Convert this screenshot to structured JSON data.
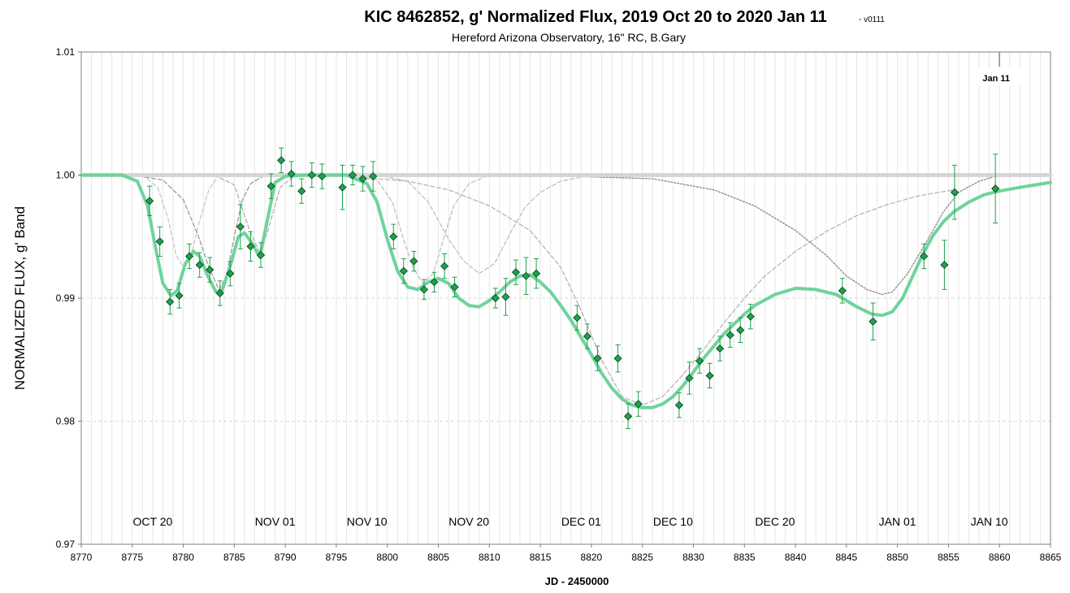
{
  "chart_data": {
    "type": "scatter",
    "title": "KIC 8462852, g' Normalized Flux, 2019 Oct 20 to 2020 Jan 11",
    "version": "- v0111",
    "subtitle": "Hereford Arizona Observatory, 16\" RC, B.Gary",
    "xlabel": "JD - 2450000",
    "ylabel": "NORMALIZED FLUX, g' Band",
    "xlim": [
      8770,
      8865
    ],
    "ylim": [
      0.97,
      1.01
    ],
    "x_ticks": [
      8770,
      8775,
      8780,
      8785,
      8790,
      8795,
      8800,
      8805,
      8810,
      8815,
      8820,
      8825,
      8830,
      8835,
      8840,
      8845,
      8850,
      8855,
      8860,
      8865
    ],
    "x_tick_labels": [
      "8770",
      "8775",
      "8780",
      "8785",
      "8790",
      "8795",
      "8800",
      "8805",
      "8810",
      "8815",
      "8820",
      "8825",
      "8830",
      "8835",
      "8840",
      "8845",
      "8850",
      "8855",
      "8860",
      "8865"
    ],
    "y_ticks": [
      0.97,
      0.98,
      0.99,
      1.0,
      1.01
    ],
    "y_tick_labels": [
      "0.97",
      "0.98",
      "0.99",
      "1.00",
      "1.01"
    ],
    "grid": "vertical lines every 1 day; dashed horizontal lines at 0.98 and 0.99",
    "month_labels": [
      {
        "text": "OCT 20",
        "x": 8777
      },
      {
        "text": "NOV 01",
        "x": 8789
      },
      {
        "text": "NOV 10",
        "x": 8798
      },
      {
        "text": "NOV 20",
        "x": 8808
      },
      {
        "text": "DEC 01",
        "x": 8819
      },
      {
        "text": "DEC 10",
        "x": 8828
      },
      {
        "text": "DEC 20",
        "x": 8838
      },
      {
        "text": "JAN 01",
        "x": 8850
      },
      {
        "text": "JAN 10",
        "x": 8859
      }
    ],
    "marker": {
      "label": "Jan 11",
      "x": 8860
    },
    "series": [
      {
        "type": "scatter",
        "color": "#1aa34a",
        "points": [
          {
            "x": 8776.7,
            "y": 0.9979,
            "err": 0.0012
          },
          {
            "x": 8777.7,
            "y": 0.9946,
            "err": 0.0012
          },
          {
            "x": 8778.7,
            "y": 0.9897,
            "err": 0.001
          },
          {
            "x": 8779.6,
            "y": 0.9902,
            "err": 0.001
          },
          {
            "x": 8780.6,
            "y": 0.9934,
            "err": 0.001
          },
          {
            "x": 8781.6,
            "y": 0.9927,
            "err": 0.001
          },
          {
            "x": 8782.6,
            "y": 0.9923,
            "err": 0.001
          },
          {
            "x": 8783.6,
            "y": 0.9904,
            "err": 0.001
          },
          {
            "x": 8784.6,
            "y": 0.992,
            "err": 0.001
          },
          {
            "x": 8785.6,
            "y": 0.9958,
            "err": 0.0018
          },
          {
            "x": 8786.6,
            "y": 0.9942,
            "err": 0.0012
          },
          {
            "x": 8787.6,
            "y": 0.9935,
            "err": 0.001
          },
          {
            "x": 8788.6,
            "y": 0.9991,
            "err": 0.001
          },
          {
            "x": 8789.6,
            "y": 1.0012,
            "err": 0.001
          },
          {
            "x": 8790.6,
            "y": 1.0001,
            "err": 0.001
          },
          {
            "x": 8791.6,
            "y": 0.9987,
            "err": 0.001
          },
          {
            "x": 8792.6,
            "y": 1.0,
            "err": 0.001
          },
          {
            "x": 8793.6,
            "y": 0.9999,
            "err": 0.001
          },
          {
            "x": 8795.6,
            "y": 0.999,
            "err": 0.0018
          },
          {
            "x": 8796.6,
            "y": 1.0,
            "err": 0.0008
          },
          {
            "x": 8797.6,
            "y": 0.9997,
            "err": 0.001
          },
          {
            "x": 8798.6,
            "y": 0.9999,
            "err": 0.0012
          },
          {
            "x": 8800.6,
            "y": 0.995,
            "err": 0.001
          },
          {
            "x": 8801.6,
            "y": 0.9922,
            "err": 0.001
          },
          {
            "x": 8802.6,
            "y": 0.993,
            "err": 0.0008
          },
          {
            "x": 8803.6,
            "y": 0.9907,
            "err": 0.0008
          },
          {
            "x": 8804.6,
            "y": 0.9913,
            "err": 0.0008
          },
          {
            "x": 8805.6,
            "y": 0.9926,
            "err": 0.001
          },
          {
            "x": 8806.6,
            "y": 0.9909,
            "err": 0.0008
          },
          {
            "x": 8810.6,
            "y": 0.99,
            "err": 0.0008
          },
          {
            "x": 8811.6,
            "y": 0.9901,
            "err": 0.0015
          },
          {
            "x": 8812.6,
            "y": 0.9921,
            "err": 0.001
          },
          {
            "x": 8813.6,
            "y": 0.9918,
            "err": 0.0015
          },
          {
            "x": 8814.6,
            "y": 0.992,
            "err": 0.0012
          },
          {
            "x": 8818.6,
            "y": 0.9884,
            "err": 0.001
          },
          {
            "x": 8819.6,
            "y": 0.9869,
            "err": 0.001
          },
          {
            "x": 8820.6,
            "y": 0.9851,
            "err": 0.001
          },
          {
            "x": 8822.6,
            "y": 0.9851,
            "err": 0.0011
          },
          {
            "x": 8823.6,
            "y": 0.9804,
            "err": 0.001
          },
          {
            "x": 8824.6,
            "y": 0.9814,
            "err": 0.001
          },
          {
            "x": 8828.6,
            "y": 0.9813,
            "err": 0.001
          },
          {
            "x": 8829.6,
            "y": 0.9835,
            "err": 0.0013
          },
          {
            "x": 8830.6,
            "y": 0.9849,
            "err": 0.001
          },
          {
            "x": 8831.6,
            "y": 0.9837,
            "err": 0.001
          },
          {
            "x": 8832.6,
            "y": 0.9859,
            "err": 0.001
          },
          {
            "x": 8833.6,
            "y": 0.987,
            "err": 0.001
          },
          {
            "x": 8834.6,
            "y": 0.9874,
            "err": 0.001
          },
          {
            "x": 8835.6,
            "y": 0.9885,
            "err": 0.001
          },
          {
            "x": 8844.6,
            "y": 0.9906,
            "err": 0.001
          },
          {
            "x": 8847.6,
            "y": 0.9881,
            "err": 0.0015
          },
          {
            "x": 8852.6,
            "y": 0.9934,
            "err": 0.001
          },
          {
            "x": 8854.6,
            "y": 0.9927,
            "err": 0.002
          },
          {
            "x": 8855.6,
            "y": 0.9986,
            "err": 0.0022
          },
          {
            "x": 8859.6,
            "y": 0.9989,
            "err": 0.0028
          }
        ]
      },
      {
        "type": "line",
        "style": "solid",
        "color": "#6fd39b",
        "points": [
          [
            8770,
            1.0
          ],
          [
            8774,
            1.0
          ],
          [
            8775.5,
            0.9995
          ],
          [
            8776.5,
            0.9975
          ],
          [
            8777.3,
            0.994
          ],
          [
            8778,
            0.9912
          ],
          [
            8778.8,
            0.9902
          ],
          [
            8779.4,
            0.9906
          ],
          [
            8780.2,
            0.9928
          ],
          [
            8781,
            0.9938
          ],
          [
            8781.6,
            0.9934
          ],
          [
            8782.4,
            0.9918
          ],
          [
            8783.2,
            0.9905
          ],
          [
            8783.8,
            0.9906
          ],
          [
            8784.6,
            0.9926
          ],
          [
            8785.4,
            0.995
          ],
          [
            8786,
            0.9953
          ],
          [
            8786.8,
            0.9944
          ],
          [
            8787.5,
            0.9933
          ],
          [
            8788.2,
            0.9962
          ],
          [
            8789,
            0.9994
          ],
          [
            8790,
            0.9999
          ],
          [
            8792,
            1.0
          ],
          [
            8796,
            1.0
          ],
          [
            8798,
            0.9993
          ],
          [
            8799,
            0.9978
          ],
          [
            8800,
            0.9948
          ],
          [
            8801,
            0.9922
          ],
          [
            8802,
            0.9909
          ],
          [
            8803,
            0.9907
          ],
          [
            8804,
            0.9913
          ],
          [
            8805,
            0.9916
          ],
          [
            8806,
            0.9912
          ],
          [
            8807,
            0.99
          ],
          [
            8808,
            0.9894
          ],
          [
            8809,
            0.9893
          ],
          [
            8810,
            0.9898
          ],
          [
            8811,
            0.9905
          ],
          [
            8812,
            0.9913
          ],
          [
            8813,
            0.9918
          ],
          [
            8814,
            0.9919
          ],
          [
            8815,
            0.9913
          ],
          [
            8816,
            0.9905
          ],
          [
            8817,
            0.9894
          ],
          [
            8818,
            0.9882
          ],
          [
            8819,
            0.9868
          ],
          [
            8820,
            0.9854
          ],
          [
            8821,
            0.9839
          ],
          [
            8822,
            0.9827
          ],
          [
            8823,
            0.9818
          ],
          [
            8824,
            0.9813
          ],
          [
            8825,
            0.9811
          ],
          [
            8826,
            0.9811
          ],
          [
            8827,
            0.9814
          ],
          [
            8828,
            0.982
          ],
          [
            8829,
            0.9829
          ],
          [
            8830,
            0.984
          ],
          [
            8831,
            0.9851
          ],
          [
            8832,
            0.9861
          ],
          [
            8833,
            0.9871
          ],
          [
            8834,
            0.9879
          ],
          [
            8835,
            0.9887
          ],
          [
            8836,
            0.9894
          ],
          [
            8838,
            0.9903
          ],
          [
            8840,
            0.9908
          ],
          [
            8842,
            0.9907
          ],
          [
            8844,
            0.9903
          ],
          [
            8846,
            0.9893
          ],
          [
            8847.5,
            0.9887
          ],
          [
            8848.5,
            0.9886
          ],
          [
            8849.5,
            0.9889
          ],
          [
            8850.5,
            0.99
          ],
          [
            8851.5,
            0.9918
          ],
          [
            8852.5,
            0.9936
          ],
          [
            8853.5,
            0.9951
          ],
          [
            8854.5,
            0.9962
          ],
          [
            8855.5,
            0.997
          ],
          [
            8857,
            0.9978
          ],
          [
            8858.5,
            0.9984
          ],
          [
            8860,
            0.9987
          ],
          [
            8862,
            0.999
          ],
          [
            8865,
            0.9994
          ]
        ]
      },
      {
        "type": "line",
        "style": "dashed",
        "color": "#c8c8c8",
        "points": [
          [
            8776,
            1.0
          ],
          [
            8777.5,
            0.999
          ],
          [
            8778.5,
            0.9965
          ],
          [
            8779.3,
            0.9935
          ],
          [
            8780,
            0.9925
          ],
          [
            8780.8,
            0.9935
          ],
          [
            8781.5,
            0.996
          ],
          [
            8782.5,
            0.9988
          ],
          [
            8783.5,
            1.0
          ]
        ]
      },
      {
        "type": "line",
        "style": "dashed",
        "color": "#999999",
        "points": [
          [
            8775,
            1.0
          ],
          [
            8778,
            0.9996
          ],
          [
            8780,
            0.998
          ],
          [
            8781.5,
            0.995
          ],
          [
            8782.5,
            0.9925
          ],
          [
            8783.5,
            0.9907
          ],
          [
            8784.2,
            0.9917
          ],
          [
            8785,
            0.995
          ],
          [
            8785.8,
            0.998
          ],
          [
            8786.6,
            0.9993
          ],
          [
            8788,
            1.0
          ]
        ]
      },
      {
        "type": "line",
        "style": "dashed",
        "color": "#b0b0b0",
        "points": [
          [
            8783,
            1.0
          ],
          [
            8785,
            0.9992
          ],
          [
            8786.5,
            0.9955
          ],
          [
            8787.5,
            0.9937
          ],
          [
            8788.3,
            0.9955
          ],
          [
            8789.5,
            0.999
          ],
          [
            8791,
            1.0
          ]
        ]
      },
      {
        "type": "line",
        "style": "dashed",
        "color": "#c0c0c0",
        "points": [
          [
            8796,
            1.0
          ],
          [
            8799,
            0.9996
          ],
          [
            8800.5,
            0.9978
          ],
          [
            8801.5,
            0.995
          ],
          [
            8802.5,
            0.9925
          ],
          [
            8803.5,
            0.9912
          ],
          [
            8804.5,
            0.992
          ],
          [
            8805.5,
            0.9948
          ],
          [
            8806.5,
            0.9975
          ],
          [
            8808,
            0.9993
          ],
          [
            8810,
            1.0
          ]
        ]
      },
      {
        "type": "line",
        "style": "dashed",
        "color": "#c0c0c0",
        "points": [
          [
            8799,
            1.0
          ],
          [
            8802,
            0.9995
          ],
          [
            8804,
            0.9978
          ],
          [
            8806,
            0.9948
          ],
          [
            8807.5,
            0.993
          ],
          [
            8809,
            0.992
          ],
          [
            8810.5,
            0.9928
          ],
          [
            8812,
            0.9952
          ],
          [
            8813.5,
            0.9974
          ],
          [
            8815,
            0.9986
          ],
          [
            8817,
            0.9995
          ],
          [
            8820,
            1.0
          ]
        ]
      },
      {
        "type": "line",
        "style": "dashed",
        "color": "#b5b5b5",
        "points": [
          [
            8796,
            0.9999
          ],
          [
            8802,
            0.9995
          ],
          [
            8806,
            0.9988
          ],
          [
            8810,
            0.9975
          ],
          [
            8814,
            0.9955
          ],
          [
            8817,
            0.9925
          ],
          [
            8819,
            0.989
          ],
          [
            8821,
            0.985
          ],
          [
            8823,
            0.982
          ],
          [
            8825,
            0.9813
          ],
          [
            8827,
            0.982
          ],
          [
            8829,
            0.9838
          ],
          [
            8831,
            0.9858
          ],
          [
            8833,
            0.988
          ],
          [
            8835,
            0.99
          ],
          [
            8837,
            0.9918
          ],
          [
            8840,
            0.9938
          ],
          [
            8843,
            0.9954
          ],
          [
            8846,
            0.9967
          ],
          [
            8849,
            0.9976
          ],
          [
            8852,
            0.9983
          ],
          [
            8855.5,
            0.9988
          ]
        ]
      },
      {
        "type": "line",
        "style": "dotted",
        "color": "#888888",
        "points": [
          [
            8810,
            1.0
          ],
          [
            8818,
            0.9999
          ],
          [
            8826,
            0.9997
          ],
          [
            8832,
            0.9988
          ],
          [
            8836,
            0.9975
          ],
          [
            8840,
            0.9955
          ],
          [
            8843,
            0.9935
          ],
          [
            8845,
            0.9918
          ],
          [
            8847,
            0.9907
          ],
          [
            8848.5,
            0.9903
          ],
          [
            8849.5,
            0.9905
          ],
          [
            8851,
            0.992
          ],
          [
            8853,
            0.9948
          ],
          [
            8854.5,
            0.997
          ],
          [
            8856,
            0.9986
          ],
          [
            8858,
            0.9995
          ],
          [
            8860,
            1.0
          ]
        ]
      },
      {
        "type": "line",
        "style": "dashed",
        "color": "#777777",
        "points": [
          [
            8770,
            1.0
          ],
          [
            8849,
            1.0
          ]
        ]
      },
      {
        "type": "line",
        "style": "solid",
        "color": "#d6d6d6",
        "points": [
          [
            8770,
            1.0
          ],
          [
            8865,
            1.0
          ]
        ]
      }
    ]
  }
}
